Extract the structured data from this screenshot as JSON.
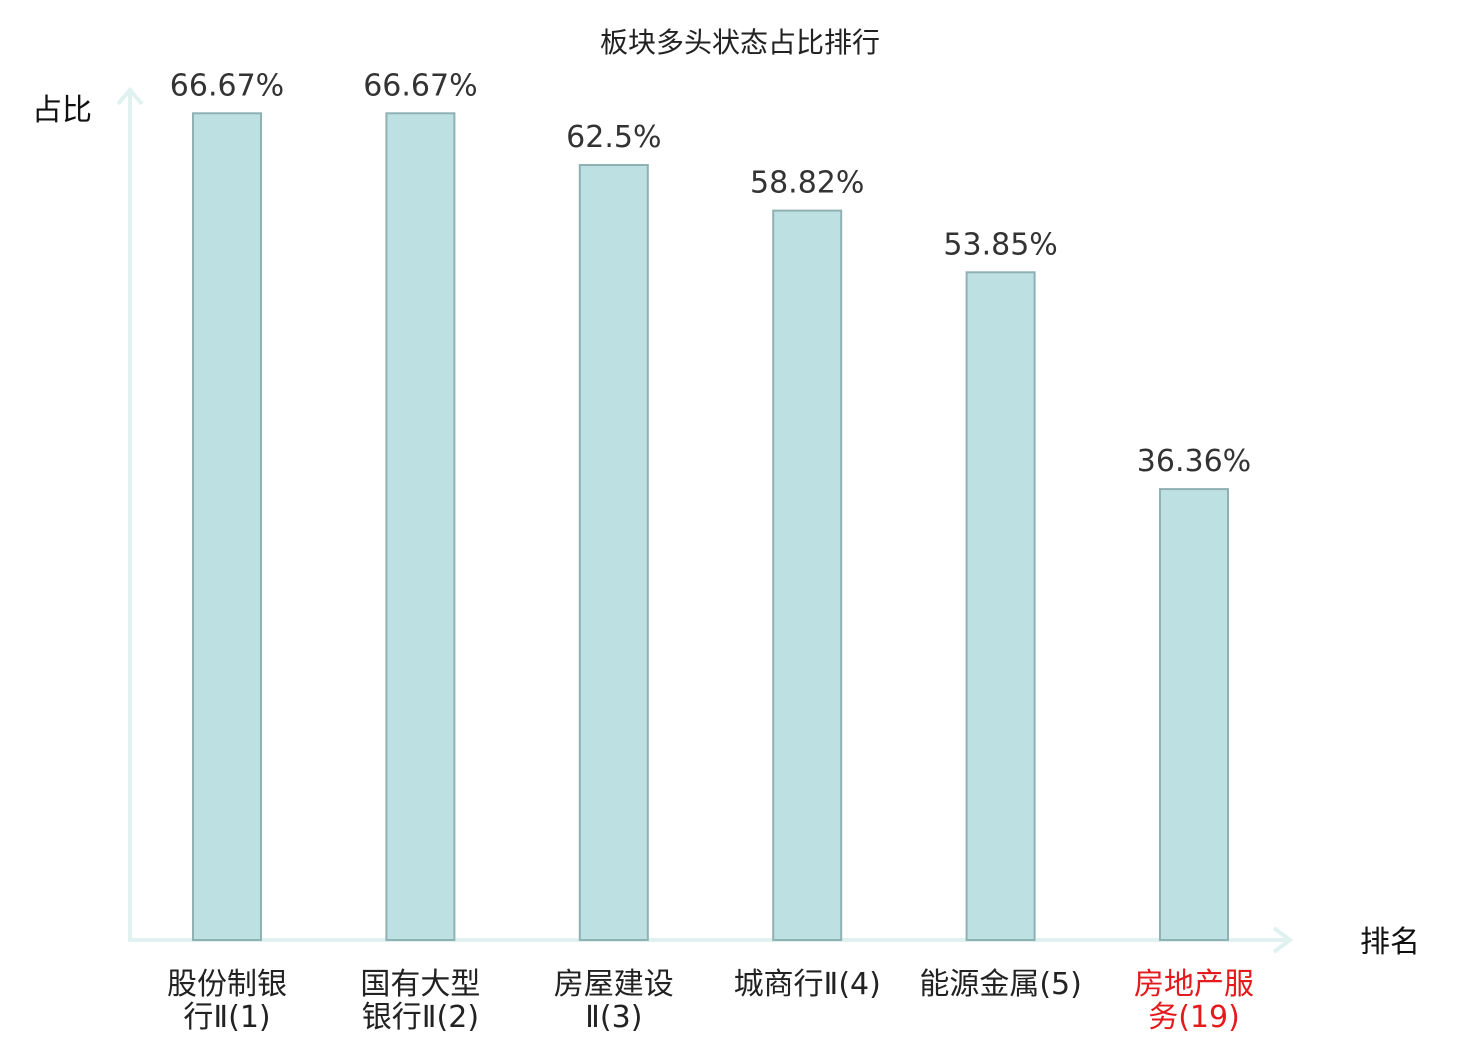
{
  "chart_data": {
    "type": "bar",
    "title": "板块多头状态占比排行",
    "ylabel": "占比",
    "xlabel": "排名",
    "ylim": [
      0,
      70
    ],
    "grid": false,
    "categories": [
      {
        "lines": [
          "股份制银",
          "行Ⅱ(1)"
        ],
        "highlight": false
      },
      {
        "lines": [
          "国有大型",
          "银行Ⅱ(2)"
        ],
        "highlight": false
      },
      {
        "lines": [
          "房屋建设",
          "Ⅱ(3)"
        ],
        "highlight": false
      },
      {
        "lines": [
          "城商行Ⅱ(4)"
        ],
        "highlight": false
      },
      {
        "lines": [
          "能源金属(5)"
        ],
        "highlight": false
      },
      {
        "lines": [
          "房地产服",
          "务(19)"
        ],
        "highlight": true
      }
    ],
    "values": [
      66.67,
      66.67,
      62.5,
      58.82,
      53.85,
      36.36
    ],
    "value_labels": [
      "66.67%",
      "66.67%",
      "62.5%",
      "58.82%",
      "53.85%",
      "36.36%"
    ]
  },
  "colors": {
    "bar_fill": "#bde0e3",
    "bar_stroke": "#8fb1b3",
    "axis": "#dff2ef",
    "category_text": "#222222",
    "highlight_text": "#e41a1c"
  }
}
